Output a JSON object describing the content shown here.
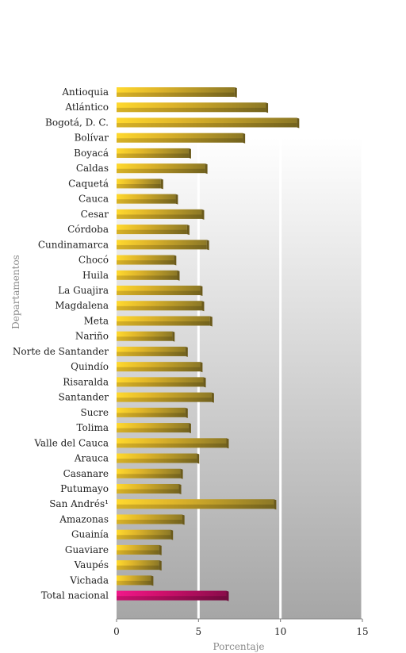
{
  "chart_data": {
    "type": "bar",
    "orientation": "horizontal",
    "title": "",
    "xlabel": "Porcentaje",
    "ylabel": "Departamentos",
    "xlim": [
      0,
      15
    ],
    "xticks": [
      0,
      5,
      10,
      15
    ],
    "grid": true,
    "categories": [
      "Antioquia",
      "Atlántico",
      "Bogotá, D. C.",
      "Bolívar",
      "Boyacá",
      "Caldas",
      "Caquetá",
      "Cauca",
      "Cesar",
      "Córdoba",
      "Cundinamarca",
      "Chocó",
      "Huila",
      "La Guajira",
      "Magdalena",
      "Meta",
      "Nariño",
      "Norte de Santander",
      "Quindío",
      "Risaralda",
      "Santander",
      "Sucre",
      "Tolima",
      "Valle del Cauca",
      "Arauca",
      "Casanare",
      "Putumayo",
      "San Andrés¹",
      "Amazonas",
      "Guainía",
      "Guaviare",
      "Vaupés",
      "Vichada",
      "Total nacional"
    ],
    "values": [
      7.2,
      9.1,
      11.0,
      7.7,
      4.4,
      5.4,
      2.7,
      3.6,
      5.2,
      4.3,
      5.5,
      3.5,
      3.7,
      5.1,
      5.2,
      5.7,
      3.4,
      4.2,
      5.1,
      5.3,
      5.8,
      4.2,
      4.4,
      6.7,
      4.9,
      3.9,
      3.8,
      9.6,
      4.0,
      3.3,
      2.6,
      2.6,
      2.1,
      6.7
    ],
    "colors": {
      "bar": "#e6bd2a",
      "bar_dark": "#8a7420",
      "total": "#d4106e",
      "total_dark": "#8c0b49"
    }
  }
}
